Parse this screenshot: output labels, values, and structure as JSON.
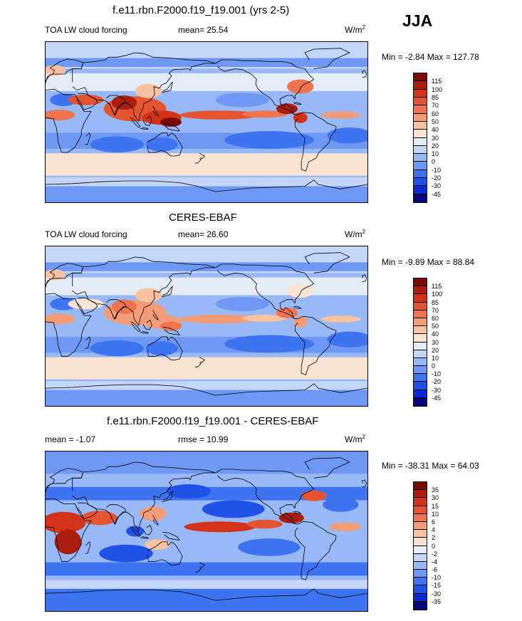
{
  "season": "JJA",
  "panels": [
    {
      "title": "f.e11.rbn.F2000.f19_f19.001 (yrs 2-5)",
      "left_label": "TOA LW cloud forcing",
      "center_label": "mean=  25.54",
      "units": "W/m",
      "units_sup": "2",
      "minmax": "Min =  -2.84 Max = 127.78",
      "map_kind": "model"
    },
    {
      "title": "CERES-EBAF",
      "left_label": "TOA LW cloud forcing",
      "center_label": "mean=  26.60",
      "units": "W/m",
      "units_sup": "2",
      "minmax": "Min =  -9.89 Max =  88.84",
      "map_kind": "obs"
    },
    {
      "title": "f.e11.rbn.F2000.f19_f19.001 - CERES-EBAF",
      "left_label": "mean =  -1.07",
      "center_label": "rmse =  10.99",
      "units": "W/m",
      "units_sup": "2",
      "minmax": "Min = -38.31 Max =  64.03",
      "map_kind": "diff"
    }
  ],
  "colors": {
    "field_scale": [
      "#08087a",
      "#0a2ad0",
      "#2152e8",
      "#3f74f0",
      "#6f98f4",
      "#98b8f6",
      "#c3d6f8",
      "#e4ecf8",
      "#fbe3d2",
      "#f8c1a0",
      "#f49c77",
      "#ef7550",
      "#e55430",
      "#d23218",
      "#a91e0e",
      "#7c0a04"
    ],
    "diff_scale": [
      "#08087a",
      "#0a2ad0",
      "#2152e8",
      "#3f74f0",
      "#6f98f4",
      "#98b8f6",
      "#c3d6f8",
      "#e4ecf8",
      "#fbe3d2",
      "#f8c1a0",
      "#f49c77",
      "#ef7550",
      "#e55430",
      "#d23218",
      "#a91e0e",
      "#7c0a04"
    ]
  },
  "chart_data": [
    {
      "type": "heatmap",
      "title": "f.e11.rbn.F2000.f19_f19.001 (yrs 2-5)",
      "variable": "TOA LW cloud forcing",
      "mean": 25.54,
      "min": -2.84,
      "max": 127.78,
      "units": "W/m2",
      "colorbar_levels": [
        -45,
        -30,
        -20,
        -10,
        0,
        10,
        20,
        30,
        40,
        50,
        60,
        70,
        85,
        100,
        115
      ]
    },
    {
      "type": "heatmap",
      "title": "CERES-EBAF",
      "variable": "TOA LW cloud forcing",
      "mean": 26.6,
      "min": -9.89,
      "max": 88.84,
      "units": "W/m2",
      "colorbar_levels": [
        -45,
        -30,
        -20,
        -10,
        0,
        10,
        20,
        30,
        40,
        50,
        60,
        70,
        85,
        100,
        115
      ]
    },
    {
      "type": "heatmap",
      "title": "f.e11.rbn.F2000.f19_f19.001 - CERES-EBAF",
      "mean": -1.07,
      "rmse": 10.99,
      "min": -38.31,
      "max": 64.03,
      "units": "W/m2",
      "colorbar_levels": [
        -35,
        -30,
        -15,
        -10,
        -6,
        -4,
        -2,
        0,
        2,
        4,
        6,
        10,
        15,
        30,
        35
      ]
    }
  ],
  "colorbar_ticks": [
    [
      "115",
      "100",
      "85",
      "70",
      "60",
      "50",
      "40",
      "30",
      "20",
      "10",
      "0",
      "-10",
      "-20",
      "-30",
      "-45"
    ],
    [
      "115",
      "100",
      "85",
      "70",
      "60",
      "50",
      "40",
      "30",
      "20",
      "10",
      "0",
      "-10",
      "-20",
      "-30",
      "-45"
    ],
    [
      "35",
      "30",
      "15",
      "10",
      "6",
      "4",
      "2",
      "0",
      "-2",
      "-4",
      "-6",
      "-10",
      "-15",
      "-30",
      "-35"
    ]
  ]
}
